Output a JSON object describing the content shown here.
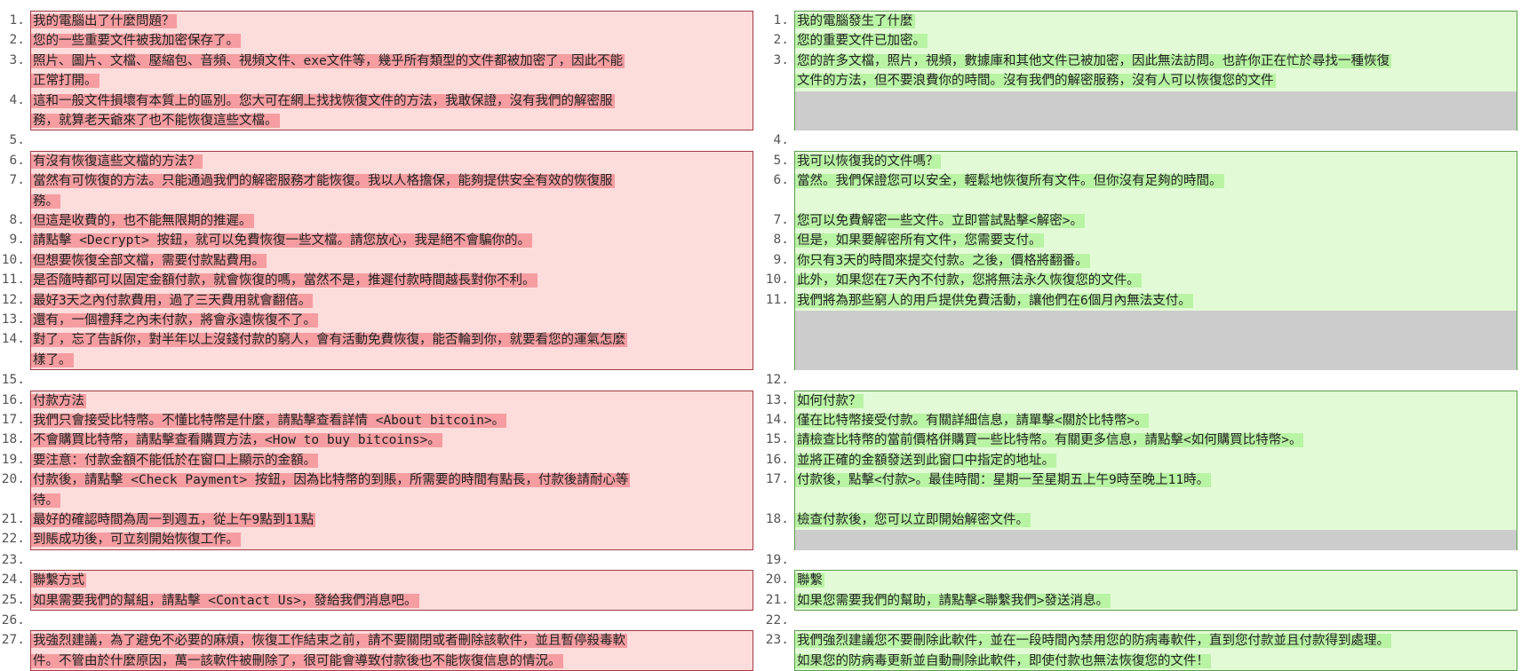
{
  "left": {
    "hunks": [
      {
        "lines": [
          {
            "n": "1.",
            "text": "我的電腦出了什麼問題？"
          },
          {
            "n": "2.",
            "text": "您的一些重要文件被我加密保存了。"
          },
          {
            "n": "3.",
            "text": "照片、圖片、文檔、壓縮包、音頻、視頻文件、exe文件等，幾乎所有類型的文件都被加密了，因此不能"
          },
          {
            "n": "",
            "text": "正常打開。"
          },
          {
            "n": "4.",
            "text": "這和一般文件損壞有本質上的區別。您大可在網上找找恢復文件的方法，我敢保證，沒有我們的解密服"
          },
          {
            "n": "",
            "text": "務，就算老天爺來了也不能恢復這些文檔。"
          }
        ]
      },
      {
        "gap": "5."
      },
      {
        "lines": [
          {
            "n": "6.",
            "text": "有沒有恢復這些文檔的方法？"
          },
          {
            "n": "7.",
            "text": "當然有可恢復的方法。只能通過我們的解密服務才能恢復。我以人格擔保，能夠提供安全有效的恢復服"
          },
          {
            "n": "",
            "text": "務。"
          },
          {
            "n": "8.",
            "text": "但這是收費的，也不能無限期的推遲。"
          },
          {
            "n": "9.",
            "text": "請點擊 <Decrypt> 按鈕，就可以免費恢復一些文檔。請您放心，我是絕不會騙你的。"
          },
          {
            "n": "10.",
            "text": "但想要恢復全部文檔，需要付款點費用。"
          },
          {
            "n": "11.",
            "text": "是否隨時都可以固定金額付款，就會恢復的嗎，當然不是，推遲付款時間越長對你不利。"
          },
          {
            "n": "12.",
            "text": "最好3天之內付款費用，過了三天費用就會翻倍。"
          },
          {
            "n": "13.",
            "text": "還有，一個禮拜之內未付款，將會永遠恢復不了。"
          },
          {
            "n": "14.",
            "text": "對了，忘了告訴你，對半年以上沒錢付款的窮人，會有活動免費恢復，能否輪到你，就要看您的運氣怎麼"
          },
          {
            "n": "",
            "text": "樣了。"
          }
        ]
      },
      {
        "gap": "15."
      },
      {
        "lines": [
          {
            "n": "16.",
            "text": "付款方法"
          },
          {
            "n": "17.",
            "text": "我們只會接受比特幣。不懂比特幣是什麼，請點擊查看詳情 <About bitcoin>。"
          },
          {
            "n": "18.",
            "text": "不會購買比特幣，請點擊查看購買方法，<How to buy bitcoins>。"
          },
          {
            "n": "19.",
            "text": "要注意：付款金額不能低於在窗口上顯示的金額。"
          },
          {
            "n": "20.",
            "text": "付款後，請點擊 <Check Payment> 按鈕，因為比特幣的到賬，所需要的時間有點長，付款後請耐心等"
          },
          {
            "n": "",
            "text": "待。"
          },
          {
            "n": "21.",
            "text": "最好的確認時間為周一到週五，從上午9點到11點"
          },
          {
            "n": "22.",
            "text": "到賬成功後，可立刻開始恢復工作。"
          }
        ]
      },
      {
        "gap": "23."
      },
      {
        "lines": [
          {
            "n": "24.",
            "text": "聯繫方式"
          },
          {
            "n": "25.",
            "text": "如果需要我們的幫組，請點擊 <Contact Us>，發給我們消息吧。"
          }
        ]
      },
      {
        "gap": "26."
      },
      {
        "lines": [
          {
            "n": "27.",
            "text": "我強烈建議，為了避免不必要的麻煩，恢復工作結束之前，請不要關閉或者刪除該軟件，並且暫停殺毒軟"
          },
          {
            "n": "",
            "text": "件。不管由於什麼原因，萬一該軟件被刪除了，很可能會導致付款後也不能恢復信息的情況。"
          }
        ]
      }
    ]
  },
  "right": {
    "hunks": [
      {
        "lines": [
          {
            "n": "1.",
            "text": "我的電腦發生了什麼"
          },
          {
            "n": "2.",
            "text": "您的重要文件已加密。"
          },
          {
            "n": "3.",
            "text": "您的許多文檔，照片，視頻，數據庫和其他文件已被加密，因此無法訪問。也許你正在忙於尋找一種恢復"
          },
          {
            "n": "",
            "text": "文件的方法，但不要浪費你的時間。沒有我們的解密服務，沒有人可以恢復您的文件"
          }
        ]
      },
      {
        "gap": "4."
      },
      {
        "lines": [
          {
            "n": "5.",
            "text": "我可以恢復我的文件嗎？"
          },
          {
            "n": "6.",
            "text": "當然。我們保證您可以安全，輕鬆地恢復所有文件。但你沒有足夠的時間。"
          },
          {
            "n": "",
            "text": ""
          },
          {
            "n": "7.",
            "text": "您可以免費解密一些文件。立即嘗試點擊<解密>。"
          },
          {
            "n": "8.",
            "text": "但是，如果要解密所有文件，您需要支付。"
          },
          {
            "n": "9.",
            "text": "你只有3天的時間來提交付款。之後，價格將翻番。"
          },
          {
            "n": "10.",
            "text": "此外，如果您在7天內不付款，您將無法永久恢復您的文件。"
          },
          {
            "n": "11.",
            "text": "我們將為那些窮人的用戶提供免費活動，讓他們在6個月內無法支付。"
          }
        ]
      },
      {
        "gap": "12."
      },
      {
        "lines": [
          {
            "n": "13.",
            "text": "如何付款？"
          },
          {
            "n": "14.",
            "text": "僅在比特幣接受付款。有關詳細信息，請單擊<關於比特幣>。"
          },
          {
            "n": "15.",
            "text": "請檢查比特幣的當前價格併購買一些比特幣。有關更多信息，請點擊<如何購買比特幣>。"
          },
          {
            "n": "16.",
            "text": "並將正確的金額發送到此窗口中指定的地址。"
          },
          {
            "n": "17.",
            "text": "付款後，點擊<付款>。最佳時間：星期一至星期五上午9時至晚上11時。"
          },
          {
            "n": "",
            "text": ""
          },
          {
            "n": "18.",
            "text": "檢查付款後，您可以立即開始解密文件。"
          }
        ]
      },
      {
        "gap": "19."
      },
      {
        "lines": [
          {
            "n": "20.",
            "text": "聯繫"
          },
          {
            "n": "21.",
            "text": "如果您需要我們的幫助，請點擊<聯繫我們>發送消息。"
          }
        ]
      },
      {
        "gap": "22."
      },
      {
        "lines": [
          {
            "n": "23.",
            "text": "我們強烈建議您不要刪除此軟件，並在一段時間內禁用您的防病毒軟件，直到您付款並且付款得到處理。"
          },
          {
            "n": "",
            "text": "如果您的防病毒更新並自動刪除此軟件，即使付款也無法恢復您的文件！"
          }
        ]
      }
    ]
  }
}
